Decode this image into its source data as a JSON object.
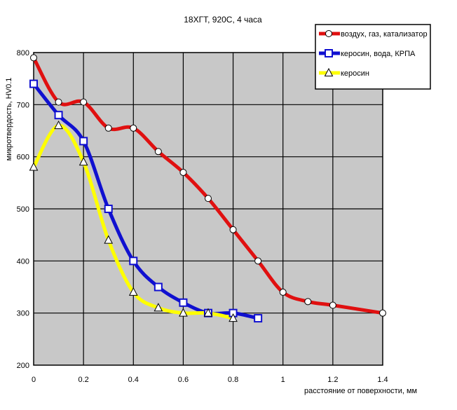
{
  "chart_data": {
    "type": "line",
    "title": "18ХГТ, 920С, 4 часа",
    "xlabel": "расстояние от поверхности, мм",
    "ylabel": "микротвердость, HV0.1",
    "xlim": [
      0,
      1.4
    ],
    "ylim": [
      200,
      800
    ],
    "x_ticks": [
      "0",
      "0.2",
      "0.4",
      "0.6",
      "0.8",
      "1",
      "1.2",
      "1.4"
    ],
    "y_ticks": [
      "200",
      "300",
      "400",
      "500",
      "600",
      "700",
      "800"
    ],
    "grid": true,
    "legend_position": "top-right",
    "series": [
      {
        "name": "воздух, газ, катализатор",
        "color": "#e01010",
        "marker": "circle",
        "x": [
          0,
          0.1,
          0.2,
          0.3,
          0.4,
          0.5,
          0.6,
          0.7,
          0.8,
          0.9,
          1.0,
          1.1,
          1.2,
          1.4
        ],
        "y": [
          790,
          705,
          705,
          655,
          655,
          610,
          570,
          520,
          460,
          400,
          340,
          322,
          315,
          300
        ]
      },
      {
        "name": "керосин, вода, КРПА",
        "color": "#1010d0",
        "marker": "square",
        "x": [
          0,
          0.1,
          0.2,
          0.3,
          0.4,
          0.5,
          0.6,
          0.7,
          0.8,
          0.9
        ],
        "y": [
          740,
          680,
          630,
          500,
          400,
          350,
          320,
          300,
          300,
          290
        ]
      },
      {
        "name": "керосин",
        "color": "#ffff00",
        "marker": "triangle",
        "x": [
          0,
          0.1,
          0.2,
          0.3,
          0.4,
          0.5,
          0.6,
          0.7,
          0.8
        ],
        "y": [
          580,
          660,
          590,
          440,
          340,
          310,
          300,
          300,
          290
        ]
      }
    ]
  }
}
